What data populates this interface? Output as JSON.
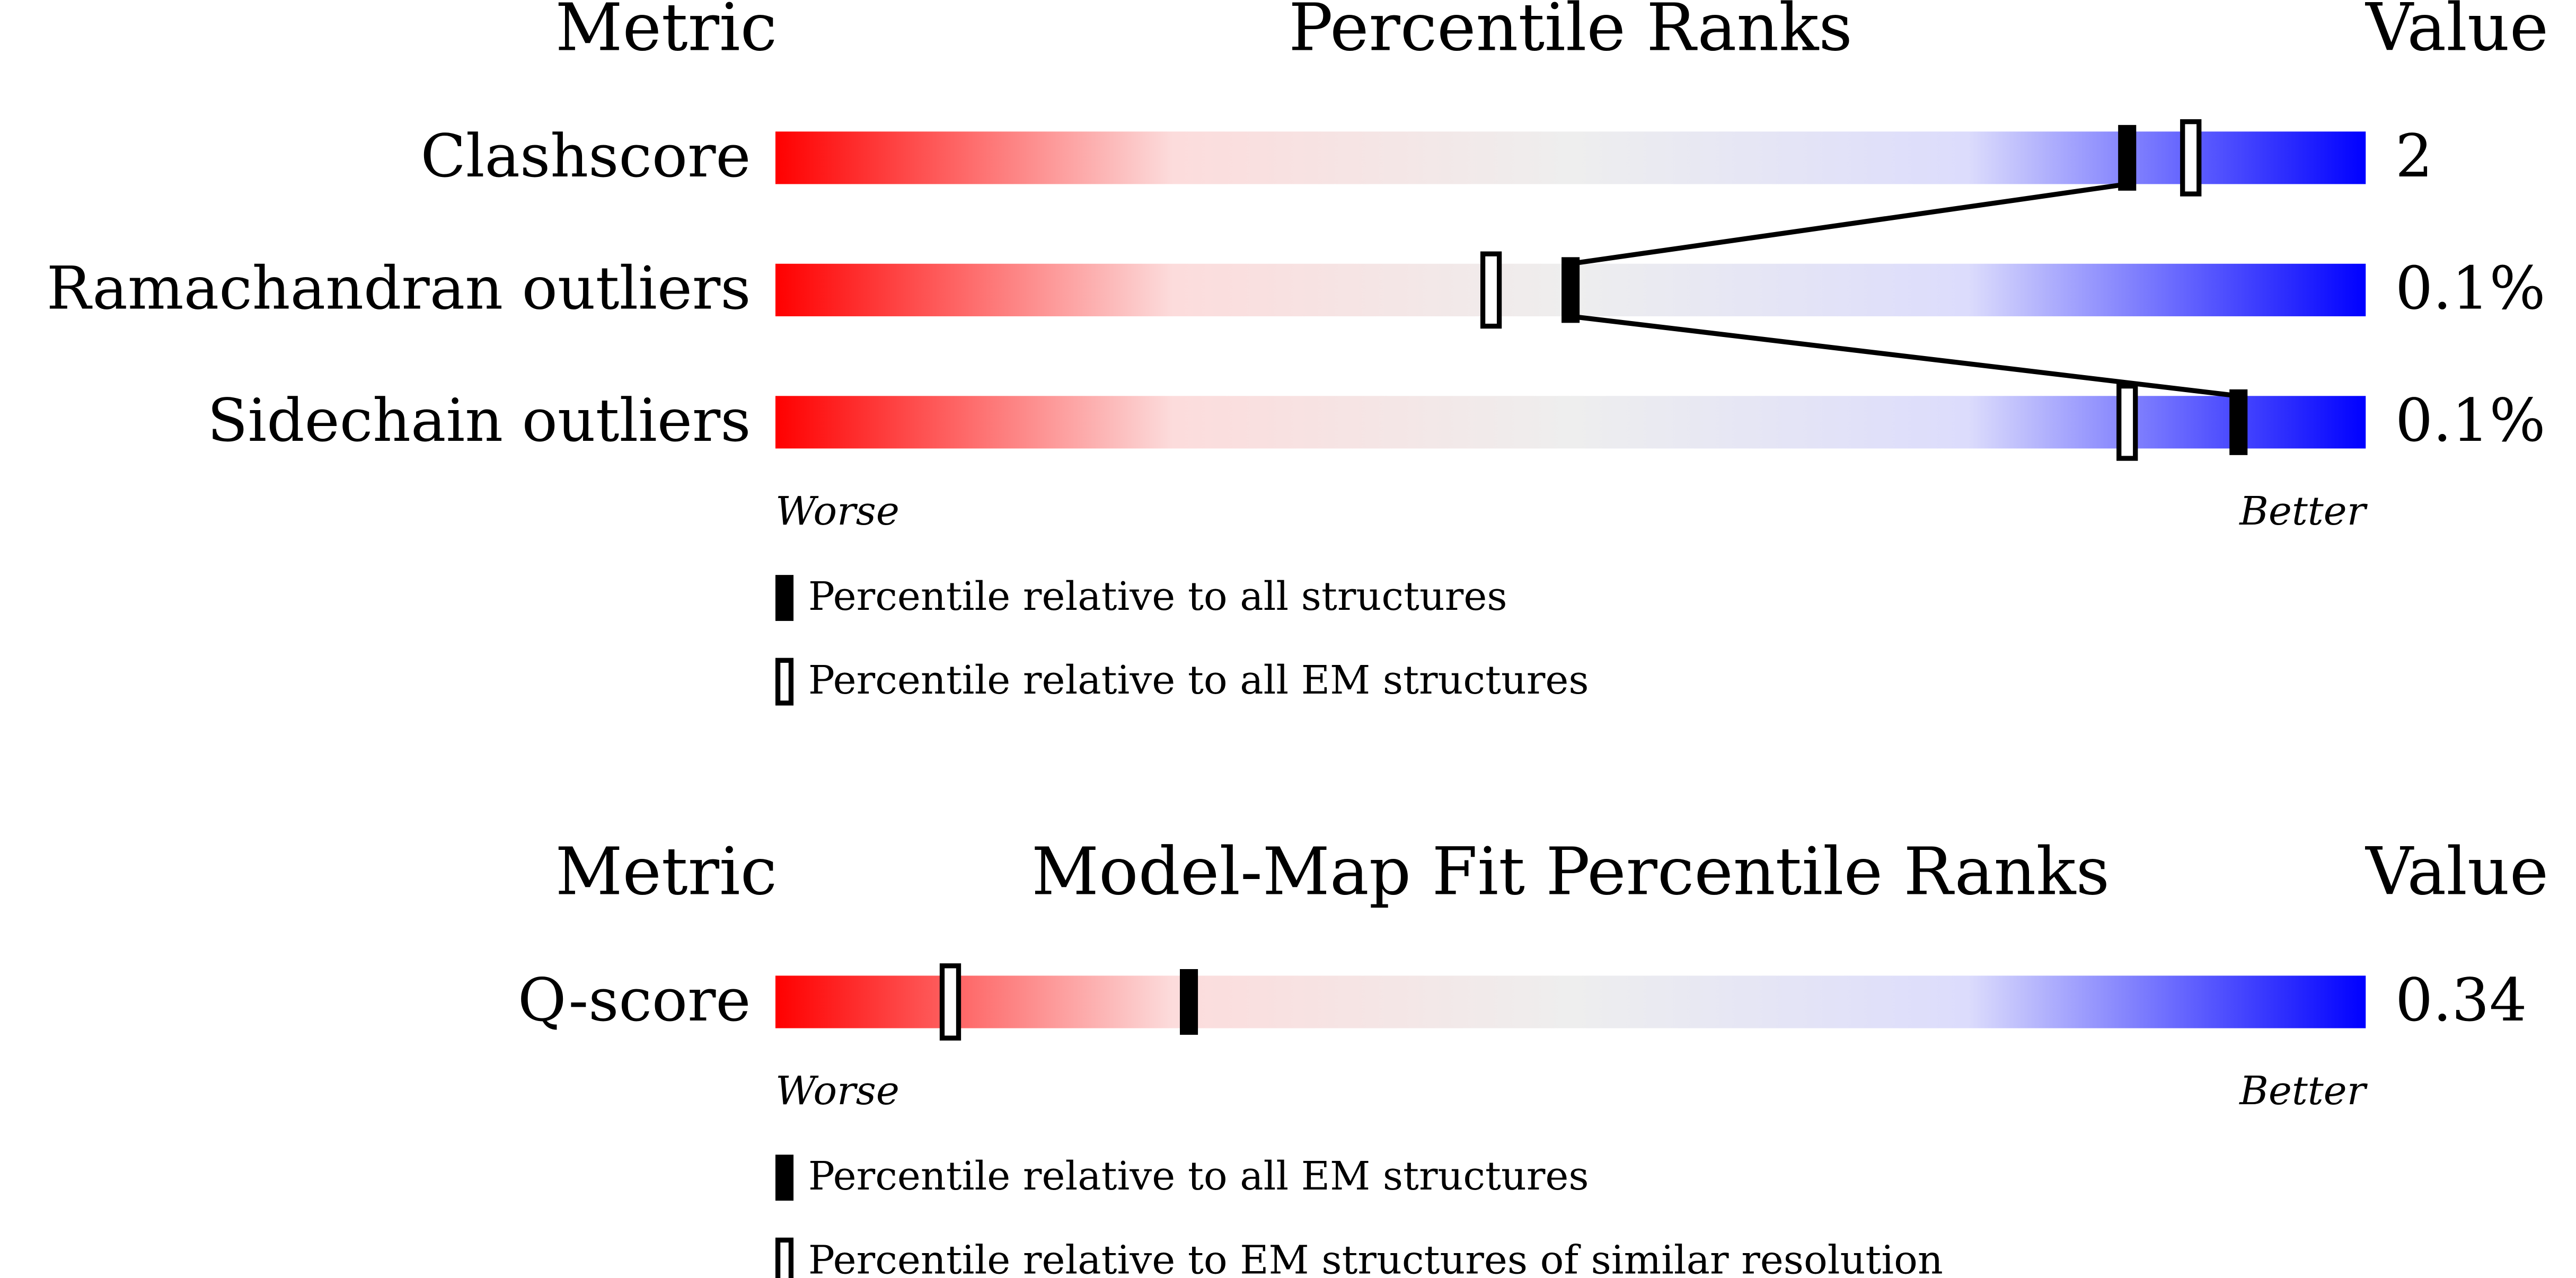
{
  "chart_data": [
    {
      "type": "percentile-slider",
      "metric_header": "Metric",
      "title": "Percentile Ranks",
      "value_header": "Value",
      "categories": [
        "Clashscore",
        "Ramachandran outliers",
        "Sidechain outliers"
      ],
      "metric_values": [
        "2",
        "0.1%",
        "0.1%"
      ],
      "series": [
        {
          "name": "Percentile relative to all structures",
          "style": "filled",
          "color": "#000000",
          "values": [
            85,
            50,
            92
          ]
        },
        {
          "name": "Percentile relative to all EM structures",
          "style": "hollow",
          "color": "#000000",
          "values": [
            89,
            45,
            85
          ]
        }
      ],
      "xlim": [
        0,
        100
      ],
      "worse": "Worse",
      "better": "Better",
      "colors": [
        "#ff0000",
        "#fcdcdc",
        "#eeeeee",
        "#dcdcfc",
        "#0000ff"
      ]
    },
    {
      "type": "percentile-slider",
      "metric_header": "Metric",
      "title": "Model-Map Fit Percentile Ranks",
      "value_header": "Value",
      "categories": [
        "Q-score"
      ],
      "metric_values": [
        "0.34"
      ],
      "series": [
        {
          "name": "Percentile relative to all EM structures",
          "style": "filled",
          "color": "#000000",
          "values": [
            26
          ]
        },
        {
          "name": "Percentile relative to EM structures of similar resolution",
          "style": "hollow",
          "color": "#000000",
          "values": [
            11
          ]
        }
      ],
      "xlim": [
        0,
        100
      ],
      "worse": "Worse",
      "better": "Better",
      "colors": [
        "#ff0000",
        "#fcdcdc",
        "#eeeeee",
        "#dcdcfc",
        "#0000ff"
      ]
    }
  ]
}
